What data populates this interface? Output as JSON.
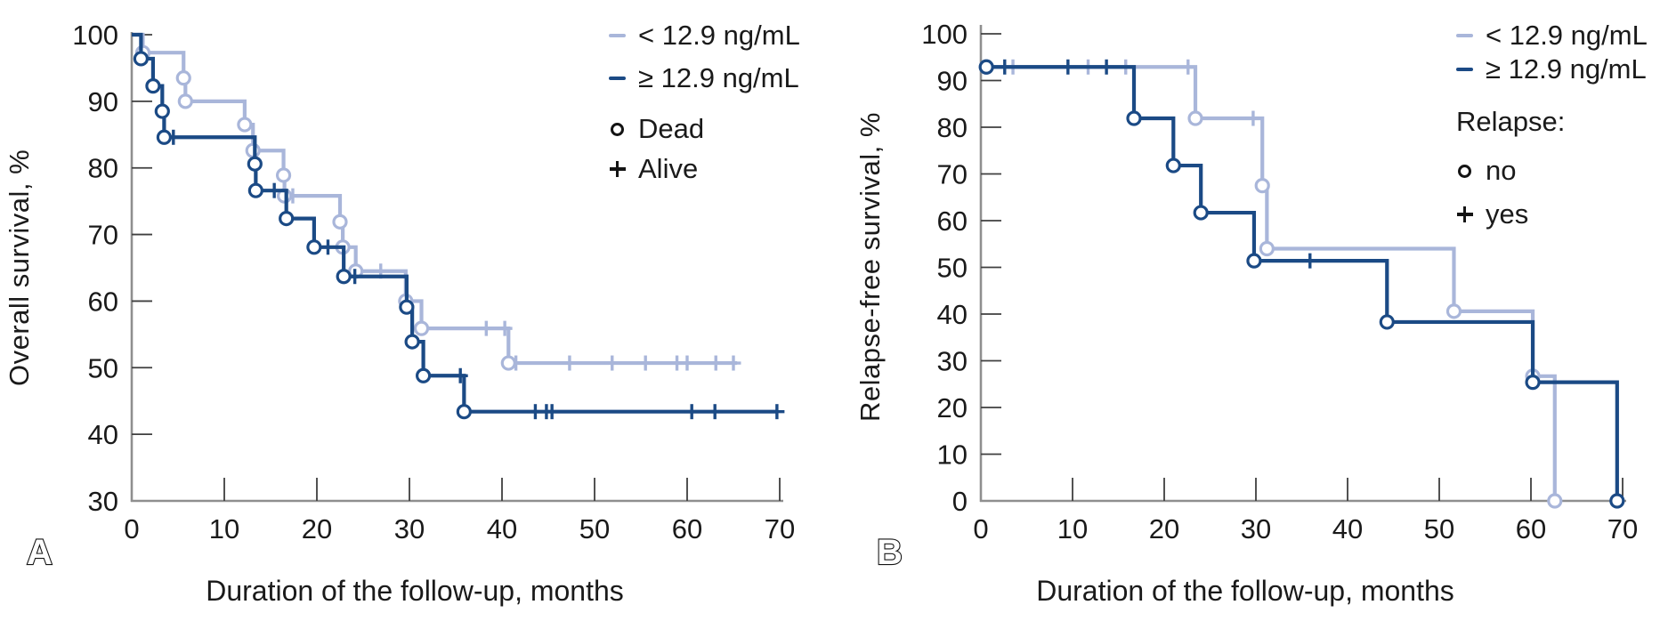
{
  "figure": {
    "panels": [
      {
        "label": "A",
        "ylabel": "Overall survival, %",
        "xlabel": "Duration of the follow-up, months",
        "legend_lines": [
          {
            "label": "< 12.9 ng/mL",
            "color_key": "light"
          },
          {
            "label": "≥ 12.9 ng/mL",
            "color_key": "dark"
          }
        ],
        "marker_legend": {
          "items": [
            {
              "marker": "circle",
              "label": "Dead"
            },
            {
              "marker": "plus",
              "label": "Alive"
            }
          ]
        }
      },
      {
        "label": "B",
        "ylabel": "Relapse-free survival, %",
        "xlabel": "Duration of the follow-up, months",
        "legend_lines": [
          {
            "label": "< 12.9 ng/mL",
            "color_key": "light"
          },
          {
            "label": "≥ 12.9 ng/mL",
            "color_key": "dark"
          }
        ],
        "marker_legend": {
          "title": "Relapse:",
          "items": [
            {
              "marker": "circle",
              "label": "no"
            },
            {
              "marker": "plus",
              "label": "yes"
            }
          ]
        }
      }
    ]
  },
  "colors": {
    "light": "#a9b6da",
    "dark": "#1b4a85",
    "axis": "#8f8f8f",
    "tick": "#3f3f3f",
    "text": "#1a1a1a"
  },
  "chart_data": [
    {
      "type": "line",
      "subtype": "kaplan-meier-step",
      "panel_label": "A",
      "title": "",
      "xlabel": "Duration of the follow-up, months",
      "ylabel": "Overall survival, %",
      "xlim": [
        0,
        70
      ],
      "ylim": [
        30,
        100
      ],
      "xticks": [
        0,
        10,
        20,
        30,
        40,
        50,
        60,
        70
      ],
      "yticks": [
        30,
        40,
        50,
        60,
        70,
        80,
        90,
        100
      ],
      "grid": false,
      "legend_position": "top-right-inside",
      "event_marker_meaning": "Dead",
      "censor_marker_meaning": "Alive",
      "series": [
        {
          "name": "< 12.9 ng/mL",
          "color_key": "light",
          "steps": [
            [
              0,
              100
            ],
            [
              1.2,
              97.3
            ],
            [
              5.6,
              93.5
            ],
            [
              5.8,
              90
            ],
            [
              12.2,
              86.5
            ],
            [
              13.1,
              82.6
            ],
            [
              16.4,
              78.9
            ],
            [
              16.5,
              75.8
            ],
            [
              22.5,
              71.9
            ],
            [
              22.8,
              68.1
            ],
            [
              24.2,
              64.5
            ],
            [
              29.6,
              60
            ],
            [
              31.3,
              55.9
            ],
            [
              40.7,
              50.7
            ],
            [
              65.4,
              50.7
            ]
          ],
          "events": [
            [
              1.2,
              97.3
            ],
            [
              5.6,
              93.5
            ],
            [
              5.8,
              90
            ],
            [
              12.2,
              86.5
            ],
            [
              13.1,
              82.6
            ],
            [
              16.4,
              78.9
            ],
            [
              16.5,
              75.8
            ],
            [
              22.5,
              71.9
            ],
            [
              22.8,
              68.1
            ],
            [
              24.2,
              64.5
            ],
            [
              29.6,
              60
            ],
            [
              31.3,
              55.9
            ],
            [
              40.7,
              50.7
            ]
          ],
          "censored": [
            [
              17.4,
              75.8
            ],
            [
              26.9,
              64.5
            ],
            [
              38.3,
              55.9
            ],
            [
              40.3,
              55.9
            ],
            [
              41.5,
              50.7
            ],
            [
              47.3,
              50.7
            ],
            [
              51.9,
              50.7
            ],
            [
              55.5,
              50.7
            ],
            [
              58.9,
              50.7
            ],
            [
              60,
              50.7
            ],
            [
              63.1,
              50.7
            ],
            [
              65,
              50.7
            ]
          ]
        },
        {
          "name": "≥ 12.9 ng/mL",
          "color_key": "dark",
          "steps": [
            [
              0,
              100
            ],
            [
              1,
              96.4
            ],
            [
              2.3,
              92.3
            ],
            [
              3.3,
              88.5
            ],
            [
              3.5,
              84.6
            ],
            [
              13.3,
              80.6
            ],
            [
              13.4,
              76.6
            ],
            [
              16.7,
              72.4
            ],
            [
              19.7,
              68.1
            ],
            [
              22.9,
              63.7
            ],
            [
              29.7,
              59.1
            ],
            [
              30.3,
              53.9
            ],
            [
              31.5,
              48.8
            ],
            [
              35.9,
              43.4
            ],
            [
              69.7,
              43.4
            ]
          ],
          "events": [
            [
              1,
              96.4
            ],
            [
              2.3,
              92.3
            ],
            [
              3.3,
              88.5
            ],
            [
              3.5,
              84.6
            ],
            [
              13.3,
              80.6
            ],
            [
              13.4,
              76.6
            ],
            [
              16.7,
              72.4
            ],
            [
              19.7,
              68.1
            ],
            [
              22.9,
              63.7
            ],
            [
              29.7,
              59.1
            ],
            [
              30.3,
              53.9
            ],
            [
              31.5,
              48.8
            ],
            [
              35.9,
              43.4
            ]
          ],
          "censored": [
            [
              4.5,
              84.6
            ],
            [
              15.4,
              76.6
            ],
            [
              21.2,
              68.1
            ],
            [
              24.1,
              63.7
            ],
            [
              35.5,
              48.8
            ],
            [
              43.6,
              43.4
            ],
            [
              44.8,
              43.4
            ],
            [
              45.4,
              43.4
            ],
            [
              60.5,
              43.4
            ],
            [
              63,
              43.4
            ],
            [
              69.7,
              43.4
            ]
          ]
        }
      ]
    },
    {
      "type": "line",
      "subtype": "kaplan-meier-step",
      "panel_label": "B",
      "title": "",
      "xlabel": "Duration of the follow-up, months",
      "ylabel": "Relapse-free survival, %",
      "xlim": [
        0,
        70
      ],
      "ylim": [
        0,
        100
      ],
      "xticks": [
        0,
        10,
        20,
        30,
        40,
        50,
        60,
        70
      ],
      "yticks": [
        0,
        10,
        20,
        30,
        40,
        50,
        60,
        70,
        80,
        90,
        100
      ],
      "grid": false,
      "legend_position": "top-right-inside",
      "event_marker_meaning": "Relapse: no",
      "censor_marker_meaning": "Relapse: yes",
      "series": [
        {
          "name": "< 12.9 ng/mL",
          "color_key": "light",
          "steps": [
            [
              0.3,
              92.9
            ],
            [
              23.4,
              81.9
            ],
            [
              30.7,
              67.5
            ],
            [
              31.2,
              54
            ],
            [
              51.6,
              40.6
            ],
            [
              60.2,
              26.7
            ],
            [
              62.6,
              0
            ]
          ],
          "events": [
            [
              0.6,
              92.9
            ],
            [
              23.4,
              81.9
            ],
            [
              30.7,
              67.5
            ],
            [
              31.2,
              54
            ],
            [
              51.6,
              40.6
            ],
            [
              60.2,
              26.7
            ],
            [
              62.6,
              0
            ]
          ],
          "censored": [
            [
              3.5,
              92.9
            ],
            [
              11.7,
              92.9
            ],
            [
              15.8,
              92.9
            ],
            [
              22.6,
              92.9
            ],
            [
              29.7,
              81.9
            ]
          ]
        },
        {
          "name": "≥ 12.9 ng/mL",
          "color_key": "dark",
          "steps": [
            [
              0.3,
              92.9
            ],
            [
              16.7,
              81.9
            ],
            [
              21,
              71.8
            ],
            [
              24,
              61.7
            ],
            [
              29.8,
              51.4
            ],
            [
              44.3,
              38.3
            ],
            [
              60.2,
              25.4
            ],
            [
              69.4,
              0
            ]
          ],
          "events": [
            [
              0.6,
              92.9
            ],
            [
              16.7,
              81.9
            ],
            [
              21,
              71.8
            ],
            [
              24,
              61.7
            ],
            [
              29.8,
              51.4
            ],
            [
              44.3,
              38.3
            ],
            [
              60.2,
              25.4
            ],
            [
              69.4,
              0
            ]
          ],
          "censored": [
            [
              2.6,
              92.9
            ],
            [
              9.5,
              92.9
            ],
            [
              13.7,
              92.9
            ],
            [
              35.9,
              51.4
            ]
          ]
        }
      ]
    }
  ]
}
